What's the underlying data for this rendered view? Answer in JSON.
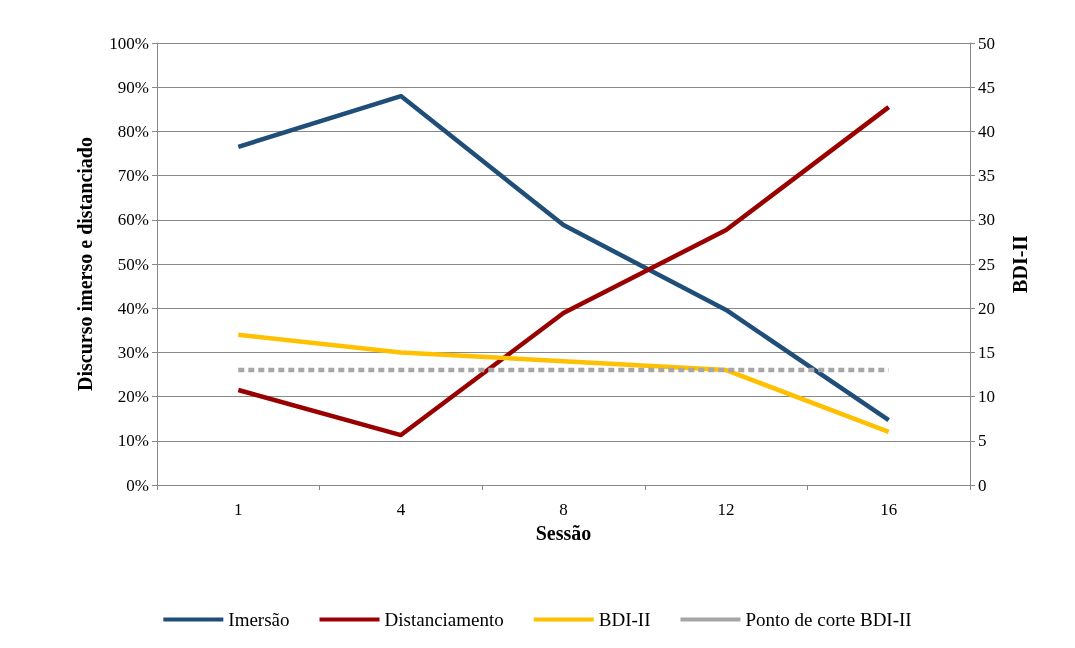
{
  "chart_data": {
    "type": "line",
    "xlabel": "Sessão",
    "ylabel": "Discurso imerso e distanciado",
    "y2label": "BDI-II",
    "categories": [
      "1",
      "4",
      "8",
      "12",
      "16"
    ],
    "series": [
      {
        "name": "Imersão",
        "color": "#1f4e79",
        "values": [
          76.5,
          88,
          58.8,
          39.6,
          14.7
        ]
      },
      {
        "name": "Distanciamento",
        "color": "#990000",
        "values": [
          21.5,
          11.3,
          38.9,
          57.7,
          85.5
        ]
      },
      {
        "name": "BDI-II",
        "color": "#ffc000",
        "axis": "y2",
        "values": [
          17,
          15,
          14,
          13,
          6
        ]
      },
      {
        "name": "Ponto de corte BDI-II",
        "color": "#a6a6a6",
        "axis": "y2",
        "line_style": "dashed",
        "values": [
          13,
          13,
          13,
          13,
          13
        ]
      }
    ],
    "ylim": [
      0,
      100
    ],
    "yticks": [
      {
        "value": 0,
        "label": "0%"
      },
      {
        "value": 10,
        "label": "10%"
      },
      {
        "value": 20,
        "label": "20%"
      },
      {
        "value": 30,
        "label": "30%"
      },
      {
        "value": 40,
        "label": "40%"
      },
      {
        "value": 50,
        "label": "50%"
      },
      {
        "value": 60,
        "label": "60%"
      },
      {
        "value": 70,
        "label": "70%"
      },
      {
        "value": 80,
        "label": "80%"
      },
      {
        "value": 90,
        "label": "90%"
      },
      {
        "value": 100,
        "label": "100%"
      }
    ],
    "y2lim": [
      0,
      50
    ],
    "y2ticks": [
      0,
      5,
      10,
      15,
      20,
      25,
      30,
      35,
      40,
      45,
      50
    ],
    "grid": "y",
    "legend": "bottom",
    "marker": "none",
    "line_style": "solid"
  }
}
